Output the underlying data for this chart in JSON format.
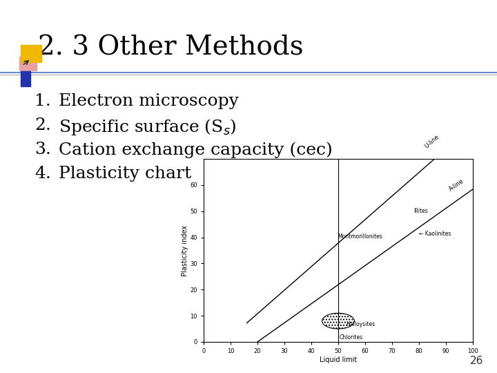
{
  "title": "2. 3 Other Methods",
  "title_fontsize": 28,
  "title_font": "serif",
  "items": [
    "Electron microscopy",
    "Specific surface (S$_s$)",
    "Cation exchange capacity (cec)",
    "Plasticity chart"
  ],
  "item_fontsize": 18,
  "background_color": "#ffffff",
  "title_color": "#000000",
  "item_color": "#000000",
  "accent_square_gold": "#f0b800",
  "accent_square_blue": "#2233aa",
  "accent_square_pink": "#e8a0a0",
  "separator_color_blue": "#6688cc",
  "separator_color_gray": "#aaaaaa",
  "page_number": "26"
}
